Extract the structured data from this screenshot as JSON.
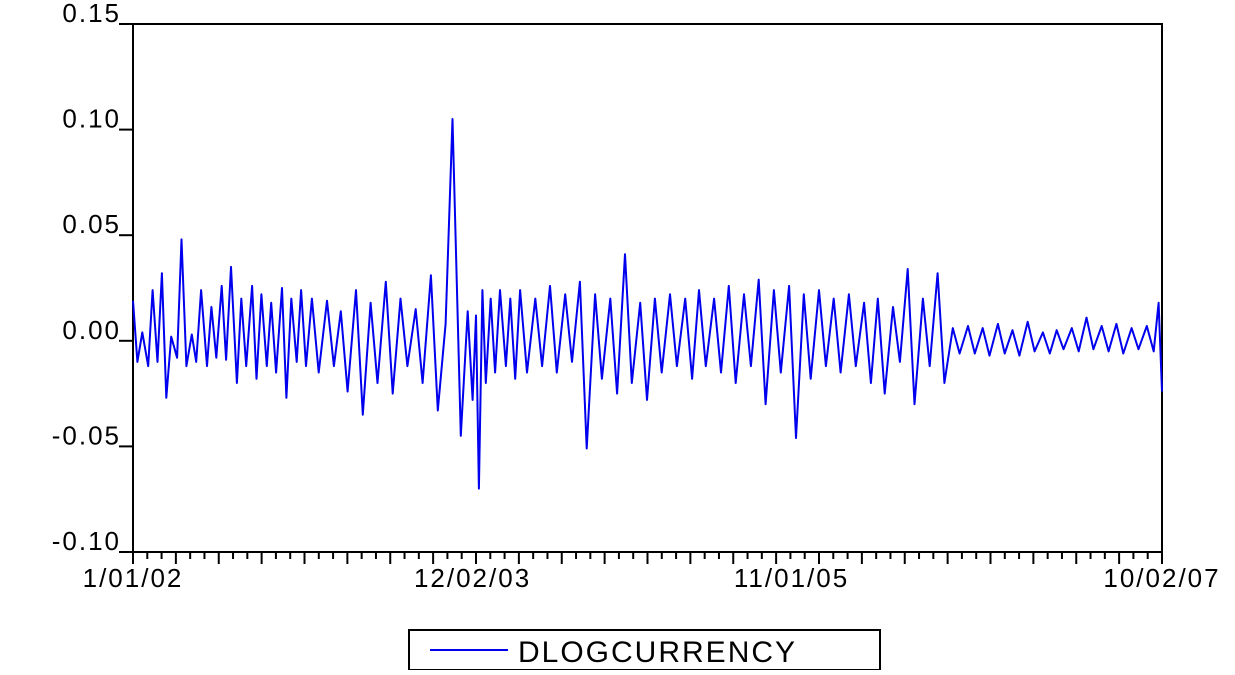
{
  "chart_data": {
    "type": "line",
    "title": "",
    "xlabel": "",
    "ylabel": "",
    "x_start": "1/01/02",
    "x_end": "10/02/07",
    "ylim": [
      -0.1,
      0.15
    ],
    "yticks": [
      -0.1,
      -0.05,
      0.0,
      0.05,
      0.1,
      0.15
    ],
    "ytick_labels": [
      "-0.10",
      "-0.05",
      "0.00",
      "0.05",
      "0.10",
      "0.15"
    ],
    "xtick_labels": [
      "1/01/02",
      "12/02/03",
      "11/01/05",
      "10/02/07"
    ],
    "grid": false,
    "legend_position": "bottom-center",
    "series": [
      {
        "name": "DLOGCURRENCY",
        "color": "#0000ee",
        "x": [
          "1/01/02",
          "1/10/02",
          "1/20/02",
          "2/01/02",
          "2/10/02",
          "2/20/02",
          "3/01/02",
          "3/10/02",
          "3/20/02",
          "4/01/02",
          "4/10/02",
          "4/20/02",
          "5/01/02",
          "5/10/02",
          "5/20/02",
          "6/01/02",
          "6/10/02",
          "6/20/02",
          "7/01/02",
          "7/10/02",
          "7/20/02",
          "8/01/02",
          "8/10/02",
          "8/20/02",
          "9/01/02",
          "9/10/02",
          "9/20/02",
          "10/01/02",
          "10/10/02",
          "10/20/02",
          "11/01/02",
          "11/10/02",
          "11/20/02",
          "12/01/02",
          "12/10/02",
          "12/20/02",
          "1/01/03",
          "1/15/03",
          "2/01/03",
          "2/15/03",
          "3/01/03",
          "3/15/03",
          "4/01/03",
          "4/15/03",
          "5/01/03",
          "5/15/03",
          "6/01/03",
          "6/15/03",
          "7/01/03",
          "7/15/03",
          "8/01/03",
          "8/15/03",
          "9/01/03",
          "9/15/03",
          "10/01/03",
          "10/15/03",
          "11/01/03",
          "11/15/03",
          "11/25/03",
          "12/02/03",
          "12/08/03",
          "12/15/03",
          "12/22/03",
          "1/01/04",
          "1/10/04",
          "1/20/04",
          "2/01/04",
          "2/10/04",
          "2/20/04",
          "3/01/04",
          "3/15/04",
          "4/01/04",
          "4/15/04",
          "5/01/04",
          "5/15/04",
          "6/01/04",
          "6/15/04",
          "7/01/04",
          "7/15/04",
          "8/01/04",
          "8/15/04",
          "9/01/04",
          "9/15/04",
          "10/01/04",
          "10/15/04",
          "11/01/04",
          "11/15/04",
          "12/01/04",
          "12/15/04",
          "1/01/05",
          "1/15/05",
          "2/01/05",
          "2/15/05",
          "3/01/05",
          "3/15/05",
          "4/01/05",
          "4/15/05",
          "5/01/05",
          "5/15/05",
          "6/01/05",
          "6/15/05",
          "7/01/05",
          "7/15/05",
          "8/01/05",
          "8/15/05",
          "9/01/05",
          "9/15/05",
          "10/01/05",
          "10/15/05",
          "11/01/05",
          "11/15/05",
          "12/01/05",
          "12/15/05",
          "1/01/06",
          "1/15/06",
          "2/01/06",
          "2/15/06",
          "3/01/06",
          "3/15/06",
          "4/01/06",
          "4/15/06",
          "5/01/06",
          "5/15/06",
          "6/01/06",
          "6/15/06",
          "7/01/06",
          "7/15/06",
          "8/01/06",
          "8/15/06",
          "9/01/06",
          "9/15/06",
          "10/01/06",
          "10/15/06",
          "11/01/06",
          "11/15/06",
          "12/01/06",
          "12/15/06",
          "1/01/07",
          "1/15/07",
          "2/01/07",
          "2/15/07",
          "3/01/07",
          "3/15/07",
          "4/01/07",
          "4/15/07",
          "5/01/07",
          "5/15/07",
          "6/01/07",
          "6/15/07",
          "7/01/07",
          "7/15/07",
          "8/01/07",
          "8/15/07",
          "9/01/07",
          "9/15/07",
          "9/25/07",
          "10/02/07"
        ],
        "values": [
          0.019,
          -0.01,
          0.004,
          -0.012,
          0.024,
          -0.01,
          0.032,
          -0.027,
          0.002,
          -0.008,
          0.048,
          -0.012,
          0.003,
          -0.01,
          0.024,
          -0.012,
          0.016,
          -0.008,
          0.026,
          -0.009,
          0.035,
          -0.02,
          0.02,
          -0.012,
          0.026,
          -0.018,
          0.022,
          -0.012,
          0.018,
          -0.015,
          0.025,
          -0.027,
          0.02,
          -0.01,
          0.024,
          -0.012,
          0.02,
          -0.015,
          0.019,
          -0.012,
          0.014,
          -0.024,
          0.024,
          -0.035,
          0.018,
          -0.02,
          0.028,
          -0.025,
          0.02,
          -0.012,
          0.015,
          -0.02,
          0.031,
          -0.033,
          0.008,
          0.105,
          -0.045,
          0.014,
          -0.028,
          0.012,
          -0.07,
          0.024,
          -0.02,
          0.02,
          -0.015,
          0.024,
          -0.012,
          0.02,
          -0.018,
          0.024,
          -0.015,
          0.02,
          -0.012,
          0.026,
          -0.015,
          0.022,
          -0.01,
          0.028,
          -0.051,
          0.022,
          -0.018,
          0.02,
          -0.025,
          0.041,
          -0.02,
          0.018,
          -0.028,
          0.02,
          -0.015,
          0.022,
          -0.012,
          0.02,
          -0.018,
          0.024,
          -0.012,
          0.02,
          -0.015,
          0.026,
          -0.02,
          0.022,
          -0.012,
          0.029,
          -0.03,
          0.024,
          -0.015,
          0.026,
          -0.046,
          0.022,
          -0.018,
          0.024,
          -0.012,
          0.02,
          -0.015,
          0.022,
          -0.012,
          0.018,
          -0.02,
          0.02,
          -0.025,
          0.016,
          -0.01,
          0.034,
          -0.03,
          0.02,
          -0.012,
          0.032,
          -0.02,
          0.006,
          -0.006,
          0.007,
          -0.006,
          0.006,
          -0.007,
          0.008,
          -0.006,
          0.005,
          -0.007,
          0.009,
          -0.005,
          0.004,
          -0.006,
          0.005,
          -0.004,
          0.006,
          -0.005,
          0.011,
          -0.004,
          0.007,
          -0.005,
          0.008,
          -0.006,
          0.006,
          -0.004,
          0.007,
          -0.005,
          0.018,
          -0.024
        ]
      }
    ]
  }
}
